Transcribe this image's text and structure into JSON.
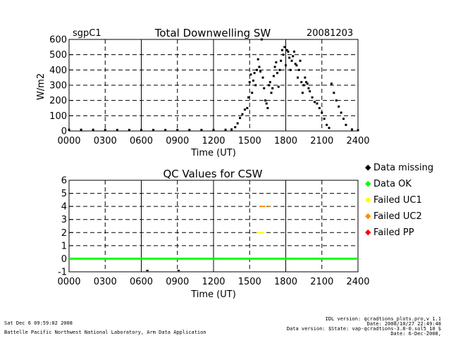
{
  "header": {
    "site": "sgpC1",
    "title": "Total Downwelling SW",
    "date": "20081203"
  },
  "qc_title": "QC Values for CSW",
  "legend": [
    {
      "label": "Data missing",
      "color": "#000000"
    },
    {
      "label": "Data OK",
      "color": "#00ff00"
    },
    {
      "label": "Failed UC1",
      "color": "#ffff00"
    },
    {
      "label": "Failed UC2",
      "color": "#ff8c00"
    },
    {
      "label": "Failed PP",
      "color": "#ff0000"
    }
  ],
  "footer": {
    "timestamp": "Sat Dec  6 09:59:02 2008",
    "lab": "Battelle Pacific Northwest National Laboratory, Arm Data Application",
    "idl": "IDL version: qcradtions_plots.pro,v 1.1",
    "date_line": "Date: 2008/10/27 22:49:48",
    "data_version": "Data version: $State: vap-qcradtions-3.8-0.sol5_10 $",
    "date2": "Date: 6-Dec-2008,"
  },
  "chart_data": [
    {
      "type": "scatter",
      "title": "Total Downwelling SW",
      "xlabel": "Time (UT)",
      "ylabel": "W/m2",
      "xlim": [
        0,
        24
      ],
      "ylim": [
        0,
        600
      ],
      "x_ticks": [
        "0000",
        "0300",
        "0600",
        "0900",
        "1200",
        "1500",
        "1800",
        "2100",
        "2400"
      ],
      "y_ticks": [
        "0",
        "100",
        "200",
        "300",
        "400",
        "500",
        "600"
      ],
      "grid": true,
      "series": [
        {
          "color": "#000000",
          "x": [
            0.0,
            1.0,
            2.0,
            3.0,
            4.0,
            5.0,
            6.0,
            7.0,
            8.0,
            9.0,
            10.0,
            11.0,
            12.0,
            13.0,
            13.5,
            13.8,
            14.0,
            14.2,
            14.4,
            14.6,
            14.8,
            14.9,
            15.0,
            15.1,
            15.2,
            15.3,
            15.4,
            15.5,
            15.6,
            15.7,
            15.8,
            15.9,
            16.0,
            16.1,
            16.2,
            16.3,
            16.4,
            16.5,
            16.6,
            16.7,
            16.8,
            16.9,
            17.0,
            17.1,
            17.2,
            17.3,
            17.4,
            17.5,
            17.6,
            17.7,
            17.8,
            17.9,
            18.0,
            18.1,
            18.2,
            18.3,
            18.4,
            18.5,
            18.6,
            18.7,
            18.8,
            18.9,
            19.0,
            19.1,
            19.2,
            19.3,
            19.4,
            19.5,
            19.6,
            19.7,
            19.8,
            19.9,
            20.0,
            20.2,
            20.4,
            20.6,
            20.8,
            21.0,
            21.2,
            21.4,
            21.6,
            21.8,
            22.0,
            22.2,
            22.4,
            22.6,
            22.8,
            23.0,
            23.5,
            24.0
          ],
          "y": [
            8,
            8,
            8,
            8,
            7,
            7,
            7,
            7,
            7,
            7,
            7,
            7,
            7,
            8,
            10,
            25,
            50,
            85,
            110,
            140,
            150,
            220,
            320,
            370,
            250,
            330,
            380,
            300,
            400,
            470,
            420,
            390,
            600,
            350,
            280,
            200,
            180,
            150,
            300,
            320,
            250,
            280,
            360,
            420,
            450,
            380,
            290,
            400,
            460,
            530,
            500,
            550,
            430,
            530,
            520,
            480,
            400,
            460,
            490,
            520,
            440,
            430,
            350,
            400,
            460,
            320,
            250,
            300,
            350,
            320,
            310,
            280,
            260,
            220,
            190,
            180,
            150,
            120,
            80,
            40,
            20,
            310,
            250,
            200,
            160,
            120,
            80,
            40,
            10,
            5
          ]
        }
      ]
    },
    {
      "type": "scatter",
      "title": "QC Values for CSW",
      "xlabel": "Time (UT)",
      "xlim": [
        0,
        24
      ],
      "ylim": [
        -1,
        6
      ],
      "x_ticks": [
        "0000",
        "0300",
        "0600",
        "0900",
        "1200",
        "1500",
        "1800",
        "2100",
        "2400"
      ],
      "y_ticks": [
        "-1",
        "0",
        "1",
        "2",
        "3",
        "4",
        "5",
        "6"
      ],
      "grid": true,
      "series": [
        {
          "name": "Data OK",
          "color": "#00ff00",
          "segments": [
            [
              0,
              24,
              0
            ]
          ]
        },
        {
          "name": "Failed UC1",
          "color": "#ffff00",
          "segments": [
            [
              15.6,
              16.2,
              2
            ]
          ]
        },
        {
          "name": "Failed UC2",
          "color": "#ff8c00",
          "segments": [
            [
              15.8,
              16.3,
              4
            ],
            [
              16.5,
              16.7,
              4
            ]
          ]
        },
        {
          "name": "Data missing",
          "color": "#000000",
          "segments": [
            [
              6.4,
              6.6,
              -0.9
            ],
            [
              9.0,
              9.2,
              -0.9
            ]
          ]
        }
      ]
    }
  ]
}
